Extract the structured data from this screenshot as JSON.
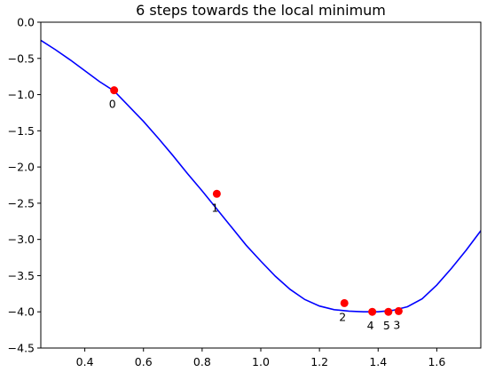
{
  "chart_data": {
    "type": "line",
    "title": "6 steps towards the local minimum",
    "xlabel": "",
    "ylabel": "",
    "xlim": [
      0.25,
      1.75
    ],
    "ylim": [
      -4.5,
      0.0
    ],
    "grid": false,
    "x_ticks": [
      0.4,
      0.6,
      0.8,
      1.0,
      1.2,
      1.4,
      1.6
    ],
    "x_tick_labels": [
      "0.4",
      "0.6",
      "0.8",
      "1.0",
      "1.2",
      "1.4",
      "1.6"
    ],
    "y_ticks": [
      0.0,
      -0.5,
      -1.0,
      -1.5,
      -2.0,
      -2.5,
      -3.0,
      -3.5,
      -4.0,
      -4.5
    ],
    "y_tick_labels": [
      "0.0",
      "−0.5",
      "−1.0",
      "−1.5",
      "−2.0",
      "−2.5",
      "−3.0",
      "−3.5",
      "−4.0",
      "−4.5"
    ],
    "series": [
      {
        "kind": "curve",
        "color": "#0000ff",
        "x": [
          0.25,
          0.3,
          0.35,
          0.4,
          0.45,
          0.5,
          0.55,
          0.6,
          0.65,
          0.7,
          0.75,
          0.8,
          0.85,
          0.9,
          0.95,
          1.0,
          1.05,
          1.1,
          1.15,
          1.2,
          1.25,
          1.3,
          1.35,
          1.4,
          1.45,
          1.5,
          1.55,
          1.6,
          1.65,
          1.7,
          1.75
        ],
        "y": [
          -0.25,
          -0.38,
          -0.52,
          -0.67,
          -0.82,
          -0.95,
          -1.16,
          -1.37,
          -1.6,
          -1.84,
          -2.09,
          -2.33,
          -2.58,
          -2.83,
          -3.08,
          -3.3,
          -3.51,
          -3.69,
          -3.83,
          -3.92,
          -3.97,
          -3.99,
          -4.0,
          -4.0,
          -3.98,
          -3.93,
          -3.82,
          -3.63,
          -3.4,
          -3.15,
          -2.88
        ]
      },
      {
        "kind": "points",
        "color": "#ff0000",
        "x": [
          0.5,
          0.85,
          1.285,
          1.47,
          1.38,
          1.435
        ],
        "y": [
          -0.94,
          -2.37,
          -3.88,
          -3.99,
          -4.0,
          -4.0
        ],
        "labels": [
          "0",
          "1",
          "2",
          "3",
          "4",
          "5"
        ]
      }
    ]
  }
}
